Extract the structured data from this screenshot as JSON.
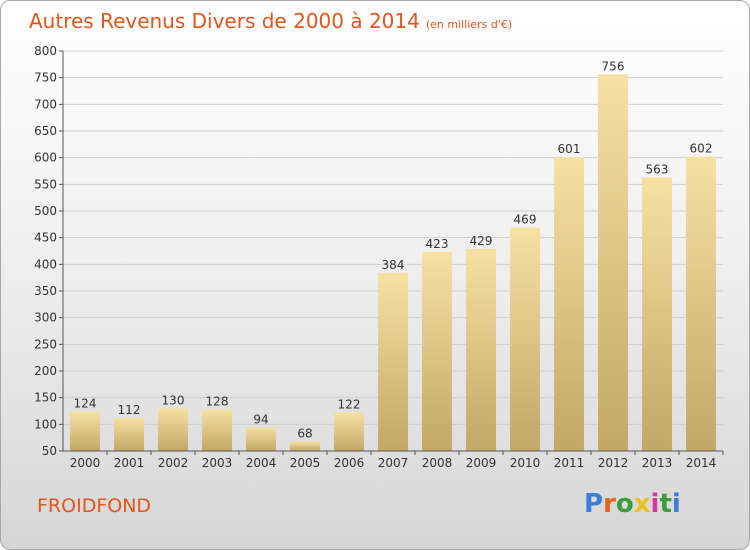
{
  "chart_data": {
    "type": "bar",
    "title": "Autres Revenus Divers de 2000 à 2014",
    "unit_note": "(en milliers d'€)",
    "categories": [
      "2000",
      "2001",
      "2002",
      "2003",
      "2004",
      "2005",
      "2006",
      "2007",
      "2008",
      "2009",
      "2010",
      "2011",
      "2012",
      "2013",
      "2014"
    ],
    "values": [
      124,
      112,
      130,
      128,
      94,
      68,
      122,
      384,
      423,
      429,
      469,
      601,
      756,
      563,
      602
    ],
    "data_labels": [
      "124",
      "112",
      "130",
      "128",
      "94",
      "68",
      "122",
      "384",
      "423",
      "429",
      "469",
      "601",
      "756",
      "563",
      "602"
    ],
    "ylim": [
      50,
      800
    ],
    "yticks": [
      50,
      100,
      150,
      200,
      250,
      300,
      350,
      400,
      450,
      500,
      550,
      600,
      650,
      700,
      750,
      800
    ],
    "grid": true,
    "xlabel": "",
    "ylabel": ""
  },
  "footer": {
    "place_name": "FROIDFOND",
    "logo_letters": [
      "P",
      "r",
      "o",
      "x",
      "i",
      "t",
      "i"
    ],
    "logo_colors": [
      "#3a7fd5",
      "#e8631a",
      "#3a9c3a",
      "#e8c21a",
      "#d63aa0",
      "#3a9c3a",
      "#3a7fd5"
    ]
  },
  "colors": {
    "accent": "#e0561d",
    "bar_light": "#f6e1a2",
    "bar_dark": "#c2a766",
    "grid": "#cfcfcf"
  }
}
